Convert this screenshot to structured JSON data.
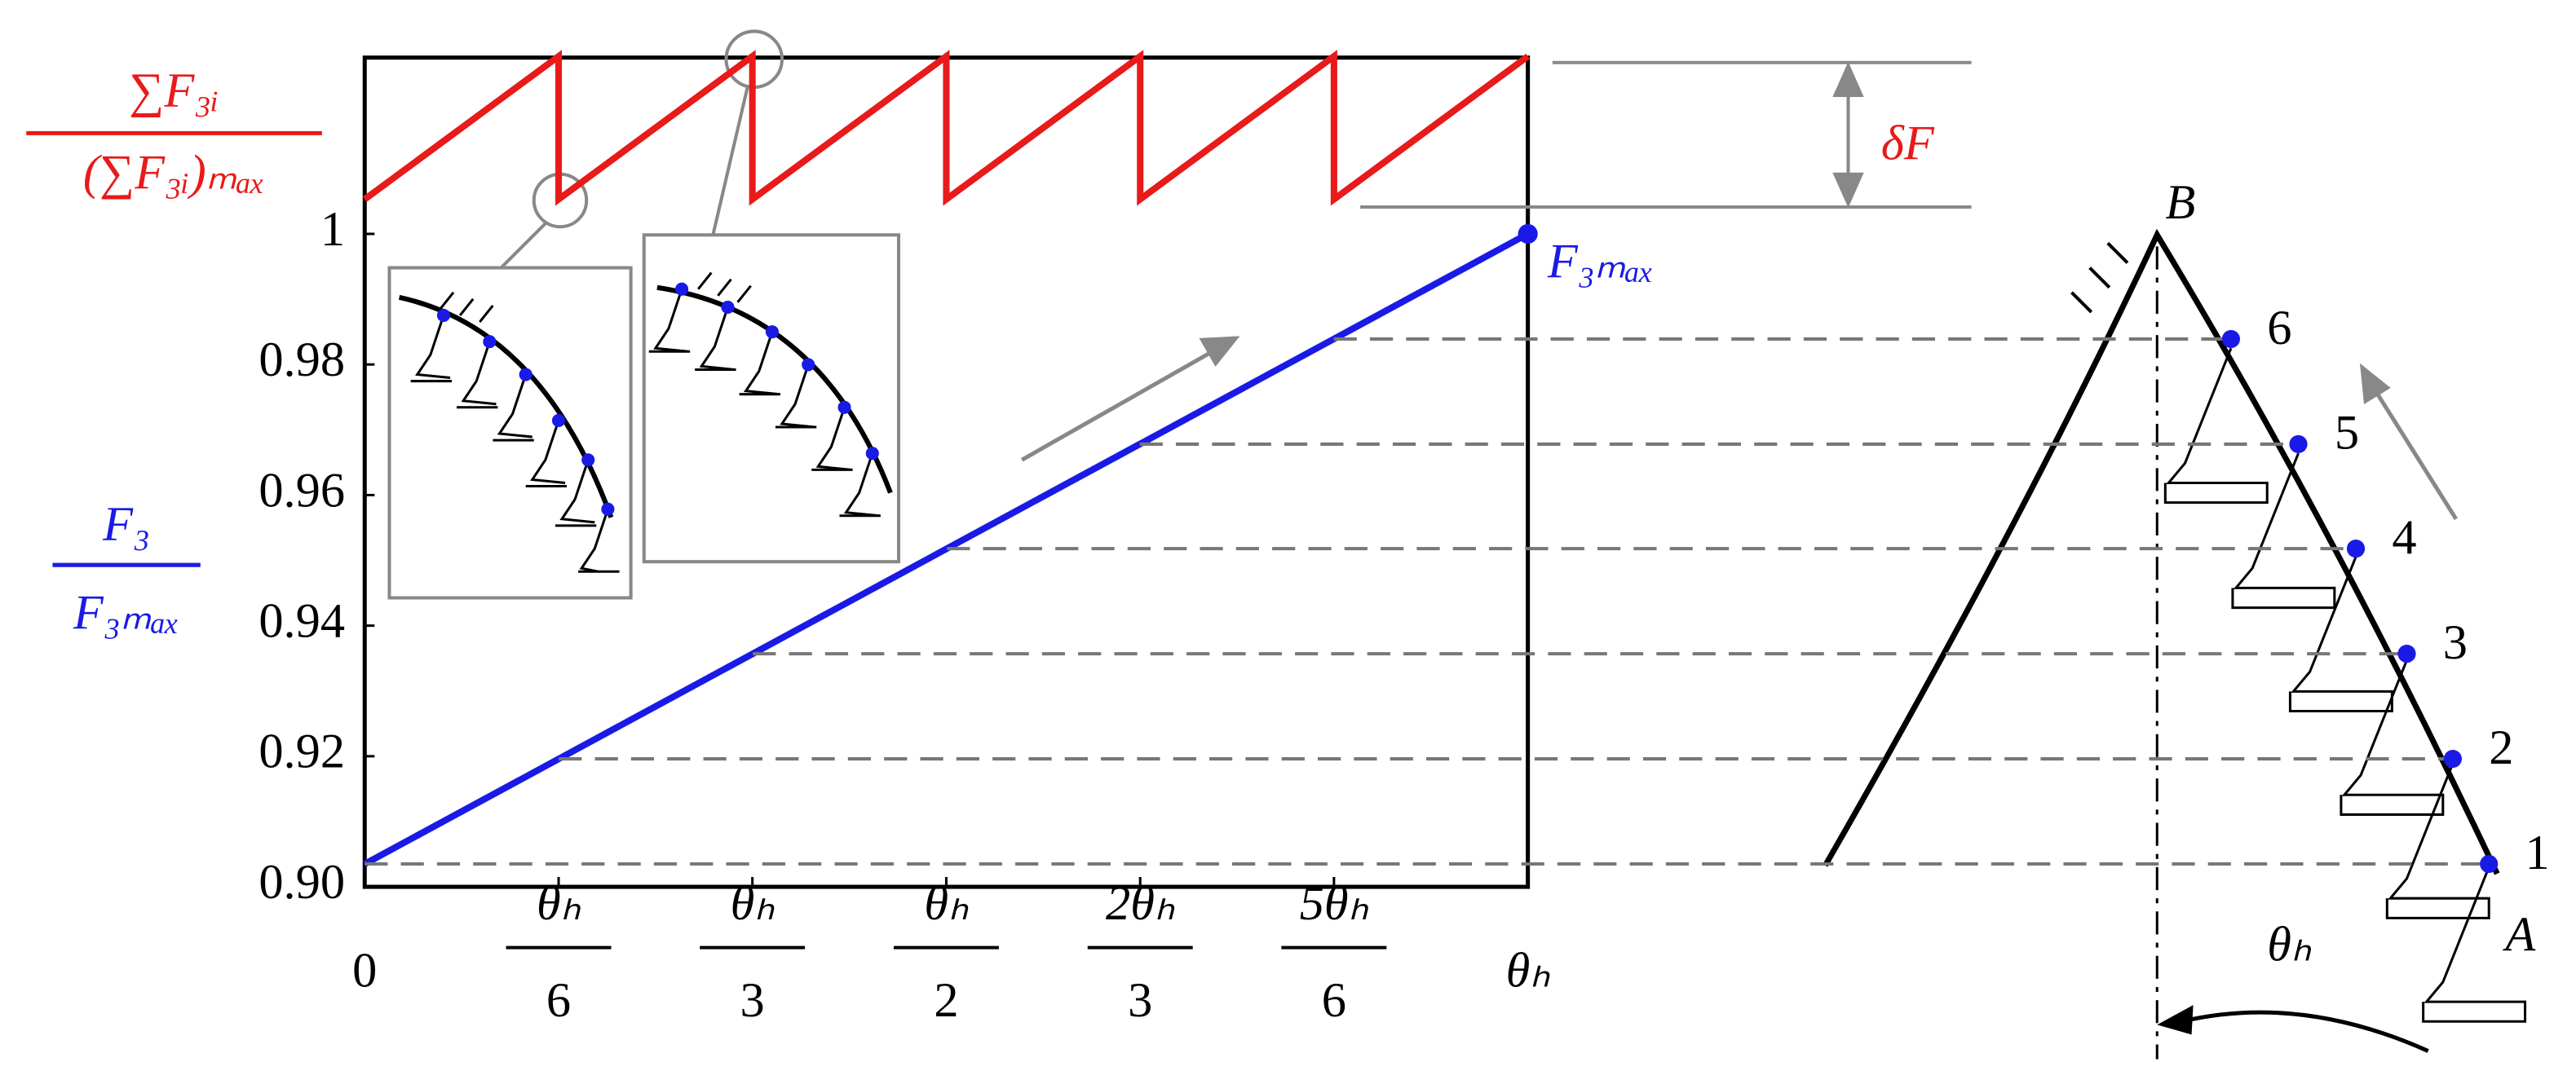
{
  "chart_data": {
    "type": "line",
    "y_label": {
      "numerator": "F₃",
      "denominator": "F₃ₘₐₓ"
    },
    "y2_label": {
      "numerator": "∑F₃ᵢ",
      "denominator": "(∑F₃ᵢ)ₘₐₓ"
    },
    "xlim": [
      0,
      1
    ],
    "ylim": [
      0.9,
      1.027
    ],
    "xticks": [
      {
        "value": 0,
        "label": "0"
      },
      {
        "value": 0.1667,
        "label": "θₕ/6"
      },
      {
        "value": 0.3333,
        "label": "θₕ/3"
      },
      {
        "value": 0.5,
        "label": "θₕ/2"
      },
      {
        "value": 0.6667,
        "label": "2θₕ/3"
      },
      {
        "value": 0.8333,
        "label": "5θₕ/6"
      },
      {
        "value": 1,
        "label": "θₕ"
      }
    ],
    "yticks": [
      {
        "value": 0.9,
        "label": "0.90"
      },
      0.92,
      0.94,
      0.96,
      0.98,
      1
    ],
    "series": [
      {
        "color": "#1a1ae6",
        "x": [
          0,
          1
        ],
        "values": [
          0.9035,
          1
        ]
      },
      {
        "color": "#e81a1a",
        "x": [
          0,
          0.1667,
          0.1667,
          0.3333,
          0.3333,
          0.5,
          0.5,
          0.6667,
          0.6667,
          0.8333,
          0.8333,
          1
        ],
        "values": [
          1.0053,
          1.0272,
          1.0053,
          1.0272,
          1.0053,
          1.0272,
          1.0053,
          1.0272,
          1.0053,
          1.0272,
          1.0053,
          1.0272
        ]
      }
    ],
    "annotations": {
      "end_point": "F₃ₘₐₓ",
      "ripple": "δF",
      "apex": "B",
      "base": "A",
      "angle": "θₕ"
    },
    "blade_points": {
      "labels": [
        "1",
        "2",
        "3",
        "4",
        "5",
        "6"
      ],
      "color": "#1a1ae6",
      "values": [
        0.9035,
        0.9196,
        0.9357,
        0.9518,
        0.9678,
        0.9839
      ]
    }
  }
}
